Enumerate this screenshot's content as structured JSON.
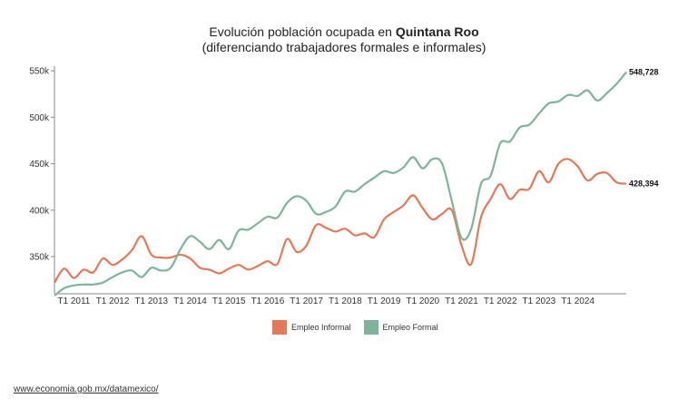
{
  "title": {
    "prefix": "Evolución población ocupada en ",
    "state": "Quintana Roo",
    "line2": "(diferenciando trabajadores formales e informales)"
  },
  "source_link": "www.economia.gob.mx/datamexico/",
  "colors": {
    "informal": "#e07a5a",
    "formal": "#7fb39a",
    "axis": "#888888"
  },
  "chart_data": {
    "type": "line",
    "title": "Evolución población ocupada en Quintana Roo (diferenciando trabajadores formales e informales)",
    "xlabel": "",
    "ylabel": "",
    "x_tick_labels": [
      "T1 2011",
      "T1 2012",
      "T1 2013",
      "T1 2014",
      "T1 2015",
      "T1 2016",
      "T1 2017",
      "T1 2018",
      "T1 2019",
      "T1 2020",
      "T1 2021",
      "T1 2022",
      "T1 2023",
      "T1 2024"
    ],
    "y_tick_labels": [
      "350k",
      "400k",
      "450k",
      "500k",
      "550k"
    ],
    "y_ticks": [
      350000,
      400000,
      450000,
      500000,
      550000
    ],
    "ylim": [
      310000,
      555000
    ],
    "grid": false,
    "legend_position": "bottom",
    "series": [
      {
        "name": "Empleo Informal",
        "color": "#e07a5a",
        "end_label": "428,394",
        "values": [
          322000,
          337000,
          327000,
          336000,
          333000,
          348000,
          341000,
          347000,
          357000,
          372000,
          352000,
          349000,
          349000,
          352000,
          348000,
          338000,
          336000,
          332000,
          337000,
          341000,
          336000,
          340000,
          345000,
          342000,
          369000,
          355000,
          362000,
          384000,
          381000,
          377000,
          380000,
          373000,
          375000,
          371000,
          390000,
          398000,
          405000,
          416000,
          402000,
          390000,
          396000,
          400000,
          362000,
          342000,
          392000,
          412000,
          428000,
          412000,
          422000,
          423000,
          442000,
          430000,
          450000,
          455000,
          447000,
          432000,
          439000,
          440000,
          430000,
          428394
        ]
      },
      {
        "name": "Empleo Formal",
        "color": "#7fb39a",
        "end_label": "548,728",
        "values": [
          308000,
          316000,
          319000,
          320000,
          320000,
          322000,
          328000,
          333000,
          335000,
          328000,
          338000,
          335000,
          338000,
          358000,
          372000,
          366000,
          358000,
          368000,
          358000,
          378000,
          379000,
          386000,
          393000,
          392000,
          408000,
          415000,
          410000,
          396000,
          398000,
          404000,
          420000,
          420000,
          428000,
          435000,
          442000,
          440000,
          446000,
          457000,
          445000,
          455000,
          450000,
          410000,
          370000,
          380000,
          428000,
          437000,
          472000,
          474000,
          489000,
          492000,
          504000,
          515000,
          517000,
          524000,
          523000,
          529000,
          518000,
          526000,
          536000,
          548728
        ]
      }
    ]
  }
}
